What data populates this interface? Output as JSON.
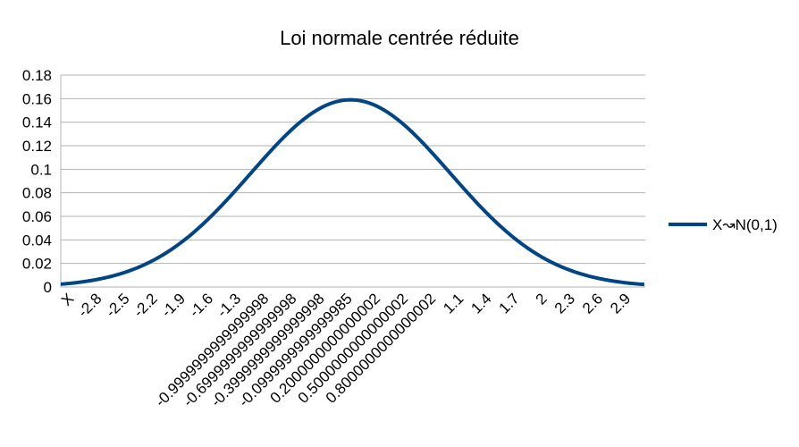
{
  "chart_data": {
    "type": "line",
    "title": "Loi normale centrée réduite",
    "xlabel": "",
    "ylabel": "",
    "ylim": [
      0,
      0.18
    ],
    "y_ticks": [
      "0",
      "0.02",
      "0.04",
      "0.06",
      "0.08",
      "0.1",
      "0.12",
      "0.14",
      "0.16",
      "0.18"
    ],
    "categories": [
      "X",
      "-2.8",
      "-2.5",
      "-2.2",
      "-1.9",
      "-1.6",
      "-1.3",
      "-0.9999999999999998",
      "-0.6999999999999998",
      "-0.3999999999999998",
      "-0.0999999999999985",
      "0.2000000000000002",
      "0.5000000000000002",
      "0.8000000000000002",
      "1.1",
      "1.4",
      "1.7",
      "2",
      "2.3",
      "2.6",
      "2.9"
    ],
    "x_min": -2.9,
    "x_max": 2.95,
    "grid": true,
    "legend_position": "right",
    "series": [
      {
        "name": "X↝N(0,1)",
        "color": "#004586",
        "distribution": "normal",
        "mean": 0,
        "sd": 1,
        "peak": 0.159
      }
    ]
  }
}
